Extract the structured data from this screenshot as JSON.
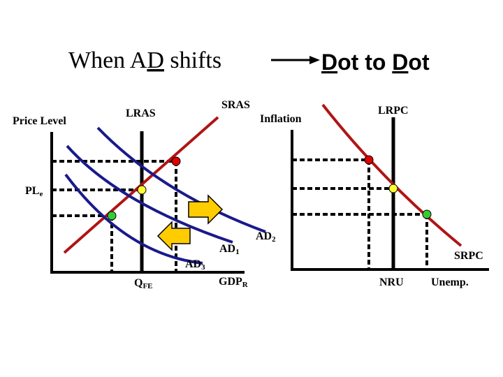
{
  "title": {
    "left_part1": "When A",
    "left_underlined": "D",
    "left_part2": " shifts",
    "right_u1": "D",
    "right_mid": "ot to ",
    "right_u2": "D",
    "right_end": "ot"
  },
  "left_graph": {
    "y_axis_label": "Price Level",
    "price_level_label": "PL",
    "price_level_sub": "e",
    "lras_label": "LRAS",
    "sras_label": "SRAS",
    "ad1_label": "AD",
    "ad1_sub": "1",
    "ad2_label": "AD",
    "ad2_sub": "2",
    "ad3_label": "AD",
    "ad3_sub": "3",
    "qfe_label": "Q",
    "qfe_sub": "FE",
    "x_axis_label": "GDP",
    "x_axis_sub": "R"
  },
  "right_graph": {
    "y_axis_label": "Inflation",
    "lrpc_label": "LRPC",
    "srpc_label": "SRPC",
    "nru_label": "NRU",
    "x_axis_label": "Unemp."
  },
  "colors": {
    "ad_curves": "#1a1a8c",
    "sras_srpc": "#b01414",
    "axes": "#000000",
    "dot_high": "#e00000",
    "dot_mid": "#ffff33",
    "dot_low": "#33cc33",
    "arrow_fill": "#ffcc00"
  }
}
